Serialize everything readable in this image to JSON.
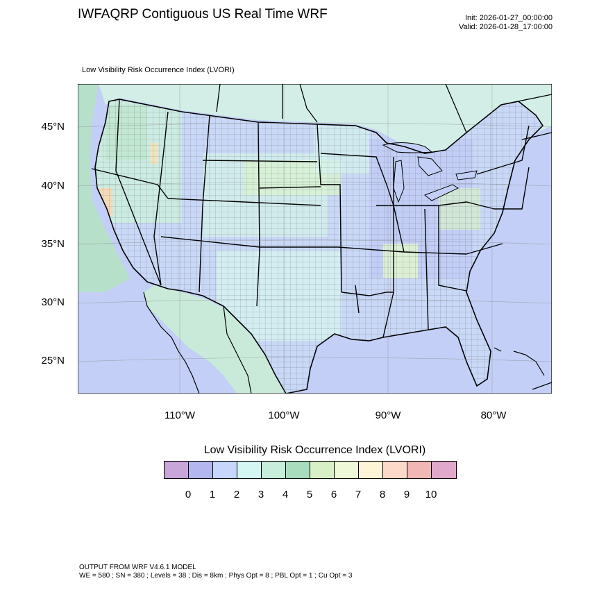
{
  "header": {
    "title": "IWFAQRP Contiguous US Real Time WRF",
    "init": "Init: 2026-01-27_00:00:00",
    "valid": "Valid: 2026-01-28_17:00:00"
  },
  "map": {
    "subtitle": "Low Visibility Risk Occurrence Index   (LVORI)",
    "lat_labels": [
      "45°N",
      "40°N",
      "35°N",
      "30°N",
      "25°N"
    ],
    "lon_labels": [
      "110°W",
      "100°W",
      "90°W",
      "80°W"
    ],
    "colors": {
      "land_base": "#c9d8f6",
      "ocean_base": "#c3cff6",
      "border": "#000000"
    }
  },
  "legend": {
    "title": "Low Visibility Risk Occurrence Index  (LVORI)",
    "colors": [
      "#c8a6da",
      "#b3b6ef",
      "#c6d7fb",
      "#d5f7f3",
      "#c6eedb",
      "#a9dbbd",
      "#d8f0c6",
      "#eef9d7",
      "#fdf5d5",
      "#fcd9c9",
      "#f1b7b4",
      "#e0a9cb"
    ],
    "labels": [
      "0",
      "1",
      "2",
      "3",
      "4",
      "5",
      "6",
      "7",
      "8",
      "9",
      "10"
    ]
  },
  "footer": {
    "line1": "OUTPUT FROM WRF V4.6.1 MODEL",
    "line2": "WE = 580 ; SN = 380 ; Levels = 38 ; Dis = 8km ; Phys Opt = 8 ; PBL Opt = 1 ; Cu Opt = 3"
  }
}
